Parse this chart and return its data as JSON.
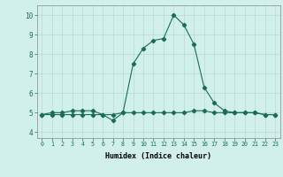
{
  "xlabel": "Humidex (Indice chaleur)",
  "x": [
    0,
    1,
    2,
    3,
    4,
    5,
    6,
    7,
    8,
    9,
    10,
    11,
    12,
    13,
    14,
    15,
    16,
    17,
    18,
    19,
    20,
    21,
    22,
    23
  ],
  "y_curve": [
    4.9,
    5.0,
    5.0,
    5.1,
    5.1,
    5.1,
    4.9,
    4.6,
    5.0,
    7.5,
    8.3,
    8.7,
    8.8,
    10.0,
    9.5,
    8.5,
    6.3,
    5.5,
    5.1,
    5.0,
    5.0,
    5.0,
    4.9,
    4.9
  ],
  "y_flat": [
    4.9,
    4.9,
    4.9,
    4.9,
    4.9,
    4.9,
    4.9,
    4.9,
    5.0,
    5.0,
    5.0,
    5.0,
    5.0,
    5.0,
    5.0,
    5.1,
    5.1,
    5.0,
    5.0,
    5.0,
    5.0,
    5.0,
    4.9,
    4.9
  ],
  "ylim": [
    3.7,
    10.5
  ],
  "xlim": [
    -0.5,
    23.5
  ],
  "yticks": [
    4,
    5,
    6,
    7,
    8,
    9,
    10
  ],
  "xticks": [
    0,
    1,
    2,
    3,
    4,
    5,
    6,
    7,
    8,
    9,
    10,
    11,
    12,
    13,
    14,
    15,
    16,
    17,
    18,
    19,
    20,
    21,
    22,
    23
  ],
  "line_color": "#1a6b5a",
  "bg_color": "#d1f0eb",
  "grid_color": "#b8d8d4",
  "marker": "D",
  "marker_size": 2.2,
  "line_width": 0.8
}
